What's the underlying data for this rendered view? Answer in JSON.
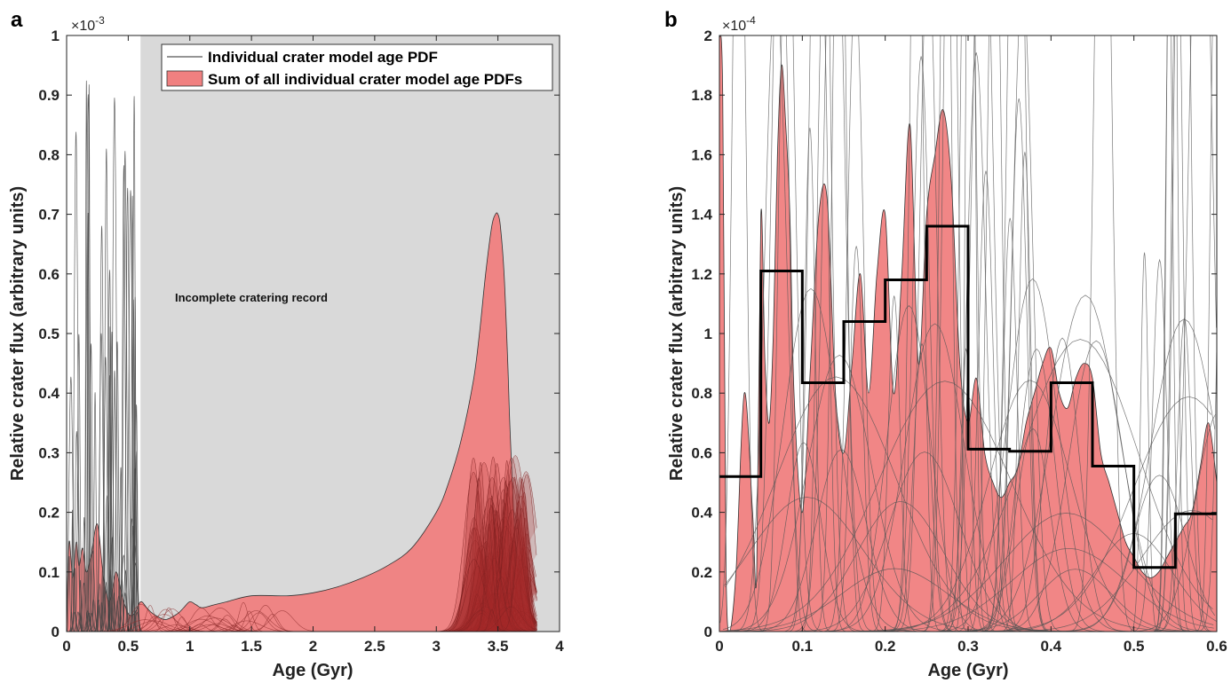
{
  "chart_data": [
    {
      "panel_label": "a",
      "type": "area",
      "xlabel": "Age (Gyr)",
      "ylabel": "Relative crater flux (arbitrary units)",
      "xlim": [
        0,
        4
      ],
      "ylim": [
        0,
        0.001
      ],
      "x_ticks": [
        "0",
        "0.5",
        "1",
        "1.5",
        "2",
        "2.5",
        "3",
        "3.5",
        "4"
      ],
      "y_ticks": [
        "0",
        "0.1",
        "0.2",
        "0.3",
        "0.4",
        "0.5",
        "0.6",
        "0.7",
        "0.8",
        "0.9",
        "1"
      ],
      "y_exponent": "×10",
      "y_exponent_power": "-3",
      "legend": {
        "position": "top-right",
        "entries": [
          {
            "label": "Individual crater model age PDF",
            "color": "#555555"
          },
          {
            "label": "Sum of all individual crater model age PDFs",
            "color": "#f08080"
          }
        ]
      },
      "shaded_region": {
        "x_start": 0.6,
        "x_end": 4,
        "color": "#d9d9d9",
        "label": "Incomplete cratering record"
      },
      "series": [
        {
          "name": "Sum of all individual crater model age PDFs",
          "color": "#f08080",
          "x": [
            0.0,
            0.02,
            0.05,
            0.08,
            0.1,
            0.13,
            0.16,
            0.2,
            0.25,
            0.3,
            0.35,
            0.4,
            0.45,
            0.5,
            0.55,
            0.6,
            0.65,
            0.7,
            0.8,
            0.9,
            0.95,
            1.0,
            1.05,
            1.1,
            1.2,
            1.3,
            1.5,
            1.8,
            2.0,
            2.2,
            2.4,
            2.6,
            2.8,
            3.0,
            3.1,
            3.2,
            3.3,
            3.35,
            3.4,
            3.45,
            3.48,
            3.5,
            3.52,
            3.55,
            3.58,
            3.6,
            3.65,
            3.7,
            3.75,
            3.78,
            3.8
          ],
          "values": [
            0.0,
            0.00015,
            9e-05,
            0.00015,
            0.00011,
            0.00014,
            0.0001,
            0.00013,
            0.00018,
            9e-05,
            5e-05,
            0.0001,
            6e-05,
            3e-05,
            3e-05,
            5e-05,
            4e-05,
            3e-05,
            2e-05,
            3e-05,
            4e-05,
            5e-05,
            4.5e-05,
            4e-05,
            4.5e-05,
            5e-05,
            6e-05,
            6e-05,
            6.5e-05,
            7.5e-05,
            9e-05,
            0.00011,
            0.00014,
            0.0002,
            0.00025,
            0.00032,
            0.00042,
            0.0005,
            0.0006,
            0.00068,
            0.0007,
            0.0007,
            0.00068,
            0.0006,
            0.00045,
            0.00033,
            0.00012,
            7e-05,
            5e-05,
            2e-05,
            0.0
          ]
        }
      ]
    },
    {
      "panel_label": "b",
      "type": "area",
      "xlabel": "Age (Gyr)",
      "ylabel": "Relative crater flux (arbitrary units)",
      "xlim": [
        0,
        0.6
      ],
      "ylim": [
        0,
        0.0002
      ],
      "x_ticks": [
        "0",
        "0.1",
        "0.2",
        "0.3",
        "0.4",
        "0.5",
        "0.6"
      ],
      "y_ticks": [
        "0",
        "0.2",
        "0.4",
        "0.6",
        "0.8",
        "1",
        "1.2",
        "1.4",
        "1.6",
        "1.8",
        "2"
      ],
      "y_exponent": "×10",
      "y_exponent_power": "-4",
      "series": [
        {
          "name": "Sum of all individual crater model age PDFs",
          "color": "#f08080",
          "x": [
            0.0,
            0.004,
            0.008,
            0.012,
            0.02,
            0.03,
            0.04,
            0.045,
            0.05,
            0.055,
            0.06,
            0.065,
            0.07,
            0.075,
            0.08,
            0.085,
            0.09,
            0.1,
            0.11,
            0.12,
            0.13,
            0.14,
            0.15,
            0.16,
            0.17,
            0.18,
            0.19,
            0.2,
            0.21,
            0.22,
            0.23,
            0.24,
            0.25,
            0.26,
            0.27,
            0.28,
            0.29,
            0.3,
            0.31,
            0.32,
            0.33,
            0.34,
            0.35,
            0.36,
            0.37,
            0.38,
            0.39,
            0.4,
            0.41,
            0.42,
            0.43,
            0.44,
            0.45,
            0.46,
            0.47,
            0.48,
            0.49,
            0.5,
            0.51,
            0.52,
            0.53,
            0.54,
            0.55,
            0.56,
            0.57,
            0.58,
            0.59,
            0.6
          ],
          "values": [
            0.0002,
            0.00018,
            2e-05,
            0.0,
            2e-05,
            8e-05,
            4e-05,
            2e-05,
            0.00014,
            9e-05,
            7e-05,
            0.0001,
            0.00016,
            0.00019,
            0.00017,
            0.00014,
            8e-05,
            4e-05,
            9e-05,
            0.00014,
            0.000145,
            8e-05,
            6e-05,
            9e-05,
            0.00012,
            8e-05,
            0.00012,
            0.00014,
            8e-05,
            0.00012,
            0.00017,
            9e-05,
            0.00014,
            0.00016,
            0.000175,
            0.00015,
            9e-05,
            7e-05,
            8.5e-05,
            6e-05,
            5e-05,
            4.5e-05,
            5e-05,
            5.5e-05,
            7e-05,
            8e-05,
            9e-05,
            9.5e-05,
            8e-05,
            7.5e-05,
            8.5e-05,
            9e-05,
            8.5e-05,
            6e-05,
            5e-05,
            4e-05,
            3e-05,
            2.5e-05,
            2e-05,
            1.8e-05,
            2e-05,
            2.5e-05,
            3e-05,
            3.5e-05,
            4e-05,
            5.5e-05,
            7e-05,
            5e-05
          ]
        },
        {
          "name": "step",
          "type": "step",
          "color": "#000000",
          "bin_edges": [
            0.0,
            0.05,
            0.1,
            0.15,
            0.2,
            0.25,
            0.3,
            0.35,
            0.4,
            0.45,
            0.5,
            0.55,
            0.6
          ],
          "values": [
            5.2e-05,
            0.000121,
            8.35e-05,
            0.000104,
            0.000118,
            0.000136,
            6.12e-05,
            6.05e-05,
            8.35e-05,
            5.55e-05,
            2.15e-05,
            3.95e-05
          ]
        }
      ]
    }
  ]
}
